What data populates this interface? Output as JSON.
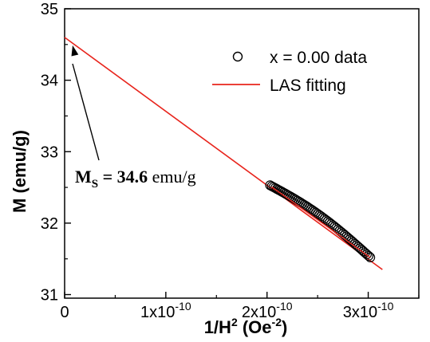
{
  "chart_data": {
    "type": "scatter",
    "title": "",
    "xlabel": {
      "pre": "1/H",
      "sup1": "2",
      "mid": " (Oe",
      "sup2": "-2",
      "post": ")"
    },
    "ylabel": "M (emu/g)",
    "xlim": [
      0,
      3.5e-10
    ],
    "ylim": [
      30.95,
      35
    ],
    "x_ticks": [
      {
        "value": 0,
        "base": "0",
        "exp": ""
      },
      {
        "value": 1e-10,
        "base": "1x10",
        "exp": "-10"
      },
      {
        "value": 2e-10,
        "base": "2x10",
        "exp": "-10"
      },
      {
        "value": 3e-10,
        "base": "3x10",
        "exp": "-10"
      }
    ],
    "y_ticks": [
      {
        "value": 31,
        "label": "31"
      },
      {
        "value": 32,
        "label": "32"
      },
      {
        "value": 33,
        "label": "33"
      },
      {
        "value": 34,
        "label": "34"
      },
      {
        "value": 35,
        "label": "35"
      }
    ],
    "grid": false,
    "legend_position": "top-right",
    "series": [
      {
        "name": "x = 0.00 data",
        "kind": "scatter",
        "marker": "open-circle",
        "color": "#000000",
        "x_range": [
          2.03e-10,
          3.02e-10
        ],
        "y_range": [
          32.53,
          31.52
        ],
        "curvature": 0.08,
        "n_points": 60
      },
      {
        "name": "LAS fitting",
        "kind": "line",
        "color": "#e8241c",
        "x": [
          0,
          3.14e-10
        ],
        "y": [
          34.6,
          31.35
        ]
      }
    ],
    "annotation": {
      "symbol": "M",
      "subscript": "S",
      "equals": " = ",
      "value": "34.6",
      "unit": " emu/g",
      "points_to": {
        "x": 0,
        "y": 34.6
      }
    }
  }
}
